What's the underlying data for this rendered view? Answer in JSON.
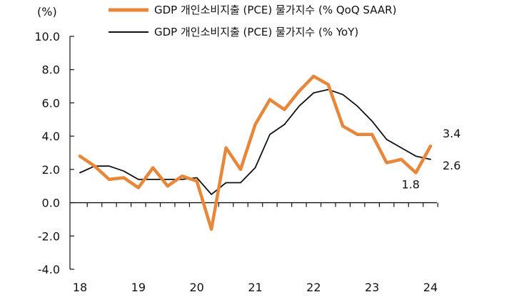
{
  "chart_data": {
    "type": "line",
    "unit_label": "(%)",
    "ylim": [
      -4.0,
      10.0
    ],
    "y_ticks": [
      "10.0",
      "8.0",
      "6.0",
      "4.0",
      "2.0",
      "0.0",
      "-2.0",
      "-4.0"
    ],
    "y_tick_values": [
      10,
      8,
      6,
      4,
      2,
      0,
      -2,
      -4
    ],
    "x_ticks": [
      "18",
      "19",
      "20",
      "21",
      "22",
      "23",
      "24"
    ],
    "x_tick_values": [
      2018,
      2019,
      2020,
      2021,
      2022,
      2023,
      2024
    ],
    "xlim": [
      2018,
      2024
    ],
    "legend_position": "top",
    "series": [
      {
        "name": "GDP 개인소비지출 (PCE) 물가지수 (% QoQ SAAR)",
        "color": "#E8873A",
        "x": [
          2018.0,
          2018.25,
          2018.5,
          2018.75,
          2019.0,
          2019.25,
          2019.5,
          2019.75,
          2020.0,
          2020.25,
          2020.5,
          2020.75,
          2021.0,
          2021.25,
          2021.5,
          2021.75,
          2022.0,
          2022.25,
          2022.5,
          2022.75,
          2023.0,
          2023.25,
          2023.5,
          2023.75,
          2024.0
        ],
        "values": [
          2.8,
          2.2,
          1.4,
          1.5,
          0.9,
          2.1,
          1.0,
          1.6,
          1.3,
          -1.6,
          3.3,
          2.0,
          4.7,
          6.2,
          5.6,
          6.7,
          7.6,
          7.1,
          4.6,
          4.1,
          4.1,
          2.4,
          2.6,
          1.8,
          3.4
        ]
      },
      {
        "name": "GDP 개인소비지출 (PCE) 물가지수 (% YoY)",
        "color": "#111111",
        "x": [
          2018.0,
          2018.25,
          2018.5,
          2018.75,
          2019.0,
          2019.25,
          2019.5,
          2019.75,
          2020.0,
          2020.25,
          2020.5,
          2020.75,
          2021.0,
          2021.25,
          2021.5,
          2021.75,
          2022.0,
          2022.25,
          2022.5,
          2022.75,
          2023.0,
          2023.25,
          2023.5,
          2023.75,
          2024.0
        ],
        "values": [
          1.8,
          2.2,
          2.2,
          1.9,
          1.4,
          1.4,
          1.4,
          1.4,
          1.5,
          0.5,
          1.2,
          1.2,
          2.1,
          4.1,
          4.7,
          5.8,
          6.6,
          6.8,
          6.5,
          5.8,
          4.9,
          3.8,
          3.3,
          2.8,
          2.6
        ]
      }
    ],
    "annotations": [
      {
        "text": "3.4",
        "x": 2024.0,
        "y": 3.4
      },
      {
        "text": "2.6",
        "x": 2024.0,
        "y": 2.6
      },
      {
        "text": "1.8",
        "x": 2023.75,
        "y": 1.8
      }
    ]
  }
}
